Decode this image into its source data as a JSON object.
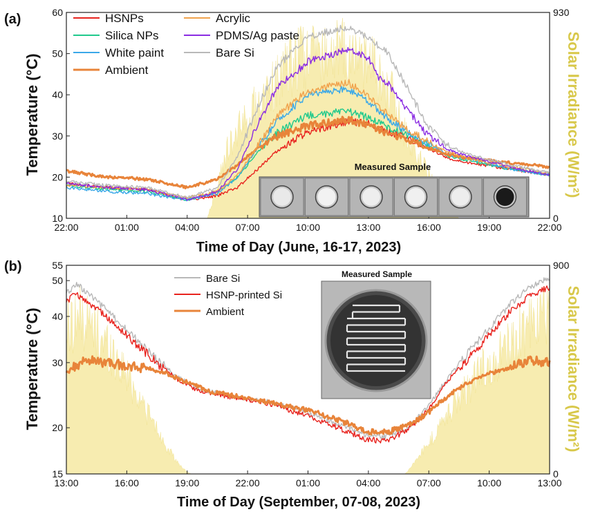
{
  "chart_data": [
    {
      "type": "line",
      "panel_label": "(a)",
      "xlabel": "Time of Day (June, 16-17, 2023)",
      "ylabel": "Temperature (°C)",
      "y2label": "Solar Irradiance (W/m²)",
      "x_ticks": [
        "22:00",
        "01:00",
        "04:00",
        "07:00",
        "10:00",
        "13:00",
        "16:00",
        "19:00",
        "22:00"
      ],
      "x_tick_hours": [
        0,
        3,
        6,
        9,
        12,
        15,
        18,
        21,
        24
      ],
      "xlim_hours": [
        0,
        24
      ],
      "ylim": [
        10,
        60
      ],
      "y_ticks": [
        10,
        20,
        30,
        40,
        50,
        60
      ],
      "y2lim": [
        0,
        930
      ],
      "y2_ticks": [
        0,
        930
      ],
      "legend": "top-left",
      "inset_title": "Measured Sample",
      "irradiance": {
        "x": [
          0,
          7.0,
          7.5,
          8,
          9,
          10,
          11,
          12,
          13,
          14,
          15,
          16,
          16.5,
          17,
          18,
          19,
          19.5,
          24
        ],
        "values": [
          0,
          0,
          180,
          380,
          560,
          700,
          820,
          900,
          920,
          900,
          860,
          720,
          560,
          420,
          250,
          40,
          0,
          0
        ]
      },
      "series": [
        {
          "name": "HSNPs",
          "color": "#e8231e",
          "x": [
            0,
            2,
            4,
            6,
            7.5,
            8.5,
            9.5,
            10.5,
            12,
            14,
            15,
            16,
            17,
            18,
            19,
            20,
            22,
            24
          ],
          "values": [
            18.5,
            17.5,
            17.0,
            14.5,
            15.5,
            17.5,
            22.0,
            26.5,
            31.0,
            33.5,
            33.0,
            31.0,
            29.5,
            27.0,
            24.5,
            23.5,
            22.0,
            20.5
          ]
        },
        {
          "name": "Silica NPs",
          "color": "#1fc98c",
          "x": [
            0,
            2,
            4,
            6,
            7.5,
            8.5,
            9.5,
            10.5,
            12,
            14,
            15,
            16,
            17,
            18,
            19,
            20,
            22,
            24
          ],
          "values": [
            18.0,
            17.0,
            16.5,
            14.5,
            16.5,
            20.0,
            26.0,
            31.0,
            35.0,
            36.0,
            34.5,
            32.0,
            30.0,
            27.5,
            25.0,
            24.0,
            22.0,
            20.5
          ]
        },
        {
          "name": "White paint",
          "color": "#3aa8e8",
          "x": [
            0,
            2,
            4,
            6,
            7.5,
            8.5,
            9.5,
            10.5,
            12,
            14,
            15,
            16,
            17,
            18,
            19,
            20,
            22,
            24
          ],
          "values": [
            17.5,
            16.5,
            16.0,
            14.5,
            16.0,
            20.0,
            27.0,
            34.0,
            40.0,
            41.5,
            38.5,
            34.0,
            31.0,
            28.0,
            25.5,
            24.5,
            22.0,
            20.5
          ]
        },
        {
          "name": "Ambient",
          "color": "#e8843a",
          "width": 3,
          "x": [
            0,
            2,
            4,
            6,
            7.5,
            8.5,
            9.5,
            10.5,
            12,
            14,
            15,
            16,
            17,
            18,
            19,
            20,
            22,
            24
          ],
          "values": [
            21.5,
            20.0,
            19.5,
            17.5,
            19.5,
            23.0,
            27.0,
            30.0,
            32.5,
            34.0,
            32.5,
            30.5,
            29.0,
            27.0,
            25.5,
            24.5,
            23.5,
            22.5
          ]
        },
        {
          "name": "Acrylic",
          "color": "#f0a24c",
          "x": [
            0,
            2,
            4,
            6,
            7.5,
            8.5,
            9.5,
            10.5,
            12,
            14,
            15,
            16,
            17,
            18,
            19,
            20,
            22,
            24
          ],
          "values": [
            18.0,
            17.5,
            17.0,
            15.0,
            16.5,
            20.5,
            27.5,
            35.0,
            41.0,
            43.0,
            39.5,
            35.0,
            31.5,
            28.5,
            26.0,
            24.5,
            22.5,
            21.0
          ]
        },
        {
          "name": "PDMS/Ag paste",
          "color": "#8a2be2",
          "x": [
            0,
            2,
            4,
            6,
            7.5,
            8.5,
            9.5,
            10.5,
            12,
            14,
            15,
            15.5,
            16,
            17,
            18,
            19,
            20,
            22,
            24
          ],
          "values": [
            18.5,
            17.5,
            17.0,
            14.5,
            16.5,
            22.0,
            33.0,
            42.0,
            48.0,
            51.0,
            49.0,
            44.0,
            42.5,
            36.0,
            30.0,
            26.5,
            25.0,
            22.5,
            20.5
          ]
        },
        {
          "name": "Bare Si",
          "color": "#b8b8b8",
          "x": [
            0,
            2,
            4,
            6,
            7.5,
            8.5,
            9.5,
            10.5,
            12,
            14,
            15,
            16,
            17,
            18,
            19,
            20,
            22,
            24
          ],
          "values": [
            19.0,
            18.0,
            17.5,
            15.0,
            17.5,
            25.0,
            37.0,
            47.0,
            54.0,
            56.5,
            54.0,
            50.0,
            41.0,
            32.0,
            27.5,
            25.5,
            23.0,
            21.0
          ]
        }
      ]
    },
    {
      "type": "line",
      "panel_label": "(b)",
      "xlabel": "Time of Day (September, 07-08, 2023)",
      "ylabel": "Temperature (°C)",
      "y2label": "Solar Irradiance (W/m²)",
      "x_ticks": [
        "13:00",
        "16:00",
        "19:00",
        "22:00",
        "01:00",
        "04:00",
        "07:00",
        "10:00",
        "13:00"
      ],
      "x_tick_hours": [
        0,
        3,
        6,
        9,
        12,
        15,
        18,
        21,
        24
      ],
      "xlim_hours": [
        0,
        24
      ],
      "ylim": [
        15,
        55
      ],
      "y_ticks": [
        15,
        20,
        30,
        40,
        50,
        55
      ],
      "y2lim": [
        0,
        900
      ],
      "y2_ticks": [
        0,
        900
      ],
      "log_y": true,
      "legend": "top-center",
      "inset_title": "Measured Sample",
      "irradiance": {
        "x": [
          0,
          0.5,
          1,
          2,
          3,
          4,
          5,
          5.5,
          6,
          6.2,
          16.8,
          17.0,
          18,
          19,
          20,
          21,
          22,
          23,
          24
        ],
        "values": [
          760,
          830,
          800,
          680,
          520,
          330,
          140,
          60,
          10,
          0,
          0,
          20,
          160,
          320,
          470,
          580,
          680,
          780,
          880
        ]
      },
      "series": [
        {
          "name": "Bare Si",
          "color": "#b8b8b8",
          "x": [
            0,
            0.5,
            1.5,
            2.5,
            3.5,
            4.5,
            5.5,
            6.5,
            8,
            10,
            12,
            13.5,
            14.5,
            15,
            16,
            17,
            18,
            19,
            20,
            21,
            22,
            23,
            24
          ],
          "values": [
            46,
            49,
            44,
            39,
            34.5,
            30.5,
            27.5,
            25.5,
            24.5,
            23.5,
            22,
            20.5,
            19.5,
            19,
            19,
            20,
            23,
            27.5,
            32,
            37,
            43,
            48,
            51
          ]
        },
        {
          "name": "HSNP-printed Si",
          "color": "#e8231e",
          "x": [
            0,
            0.5,
            1.5,
            2.5,
            3.5,
            4.5,
            5.5,
            6.5,
            8,
            10,
            12,
            13.5,
            14.5,
            15,
            16,
            17,
            18,
            19,
            20,
            21,
            22,
            23,
            24
          ],
          "values": [
            44,
            46,
            42,
            37.5,
            33.5,
            30,
            27,
            25.3,
            24.3,
            23.3,
            21.5,
            20,
            19,
            18.5,
            18.5,
            19.8,
            22.5,
            27,
            31,
            35.5,
            41,
            45.5,
            48
          ]
        },
        {
          "name": "Ambient",
          "color": "#e8843a",
          "width": 3,
          "x": [
            0,
            0.5,
            1,
            2,
            3,
            4,
            5,
            6,
            7,
            9,
            12,
            13.5,
            15,
            16,
            17,
            18,
            19,
            20,
            21,
            22,
            23,
            24
          ],
          "values": [
            28,
            29.5,
            30.5,
            30,
            29.5,
            29,
            28,
            26.5,
            25.2,
            24,
            22.3,
            21,
            19.5,
            19.5,
            20.3,
            22,
            24.5,
            26.5,
            28,
            29,
            30.5,
            30
          ]
        }
      ]
    }
  ]
}
